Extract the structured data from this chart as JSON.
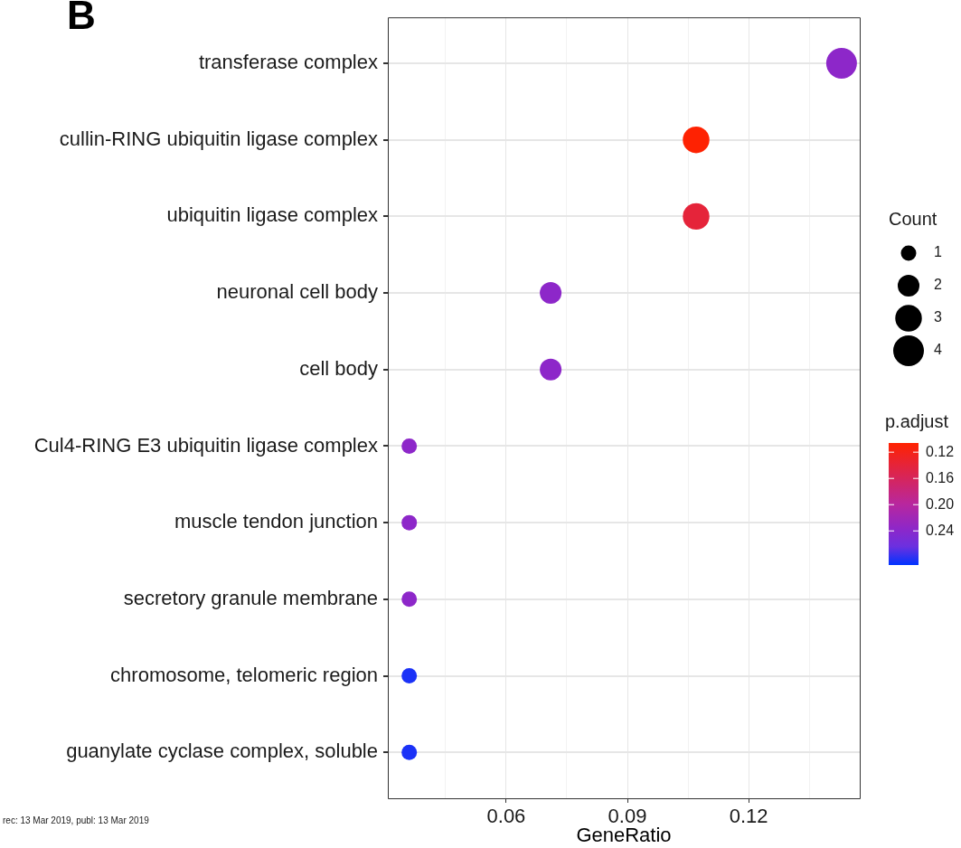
{
  "chart_data": {
    "type": "bubble",
    "orientation": "horizontal",
    "categories": [
      "transferase complex",
      "cullin-RING ubiquitin ligase complex",
      "ubiquitin ligase complex",
      "neuronal cell body",
      "cell body",
      "Cul4-RING E3 ubiquitin ligase complex",
      "muscle tendon junction",
      "secretory granule membrane",
      "chromosome, telomeric region",
      "guanylate cyclase complex, soluble"
    ],
    "values": [
      0.143,
      0.107,
      0.107,
      0.071,
      0.071,
      0.036,
      0.036,
      0.036,
      0.036,
      0.036
    ],
    "sizes": [
      4,
      3,
      3,
      2,
      2,
      1,
      1,
      1,
      1,
      1
    ],
    "size_legend": [
      1,
      2,
      3,
      4
    ],
    "cvalues": [
      0.237,
      0.107,
      0.14,
      0.237,
      0.237,
      0.237,
      0.237,
      0.237,
      0.285,
      0.285
    ],
    "clim": [
      0.292,
      0.106
    ],
    "cticks": [
      {
        "value": 0.12,
        "label": "0.12"
      },
      {
        "value": 0.16,
        "label": "0.16"
      },
      {
        "value": 0.2,
        "label": "0.20"
      },
      {
        "value": 0.24,
        "label": "0.24"
      }
    ],
    "xlabel": "GeneRatio",
    "legend_title": "Count",
    "clabel": "p.adjust",
    "xlim": [
      0.0307,
      0.1475
    ],
    "xticks": [
      {
        "value": 0.045,
        "label": null
      },
      {
        "value": 0.06,
        "label": "0.06"
      },
      {
        "value": 0.075,
        "label": null
      },
      {
        "value": 0.09,
        "label": "0.09"
      },
      {
        "value": 0.105,
        "label": null
      },
      {
        "value": 0.12,
        "label": "0.12"
      },
      {
        "value": 0.135,
        "label": null
      }
    ],
    "grid": true,
    "marker": "circle",
    "annotations": [
      "B",
      "rec: 13 Mar 2019, publ: 13 Mar 2019"
    ]
  }
}
